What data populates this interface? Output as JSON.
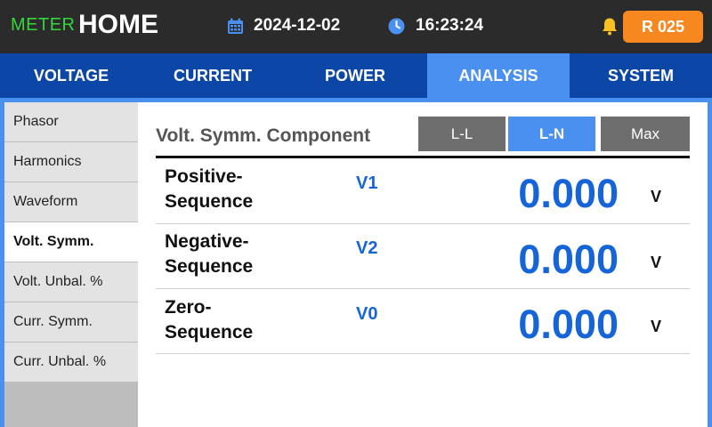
{
  "header": {
    "brand": "METER",
    "page": "HOME",
    "date": "2024-12-02",
    "time": "16:23:24",
    "relay_badge": "R 025",
    "accent_color": "#35d63b",
    "badge_color": "#f7881f"
  },
  "tabs": [
    {
      "label": "VOLTAGE",
      "active": false
    },
    {
      "label": "CURRENT",
      "active": false
    },
    {
      "label": "POWER",
      "active": false
    },
    {
      "label": "ANALYSIS",
      "active": true
    },
    {
      "label": "SYSTEM",
      "active": false
    }
  ],
  "sidebar": {
    "items": [
      {
        "label": "Phasor",
        "active": false
      },
      {
        "label": "Harmonics",
        "active": false
      },
      {
        "label": "Waveform",
        "active": false
      },
      {
        "label": "Volt. Symm.",
        "active": true
      },
      {
        "label": "Volt. Unbal. %",
        "active": false
      },
      {
        "label": "Curr. Symm.",
        "active": false
      },
      {
        "label": "Curr. Unbal. %",
        "active": false
      }
    ]
  },
  "main": {
    "title": "Volt. Symm. Component",
    "modes": [
      {
        "label": "L-L",
        "active": false
      },
      {
        "label": "L-N",
        "active": true
      },
      {
        "label": "Max",
        "active": false
      }
    ],
    "rows": [
      {
        "label_line1": "Positive-",
        "label_line2": "Sequence",
        "symbol": "V1",
        "value": "0.000",
        "unit": "V"
      },
      {
        "label_line1": "Negative-",
        "label_line2": "Sequence",
        "symbol": "V2",
        "value": "0.000",
        "unit": "V"
      },
      {
        "label_line1": "Zero-",
        "label_line2": "Sequence",
        "symbol": "V0",
        "value": "0.000",
        "unit": "V"
      }
    ]
  }
}
